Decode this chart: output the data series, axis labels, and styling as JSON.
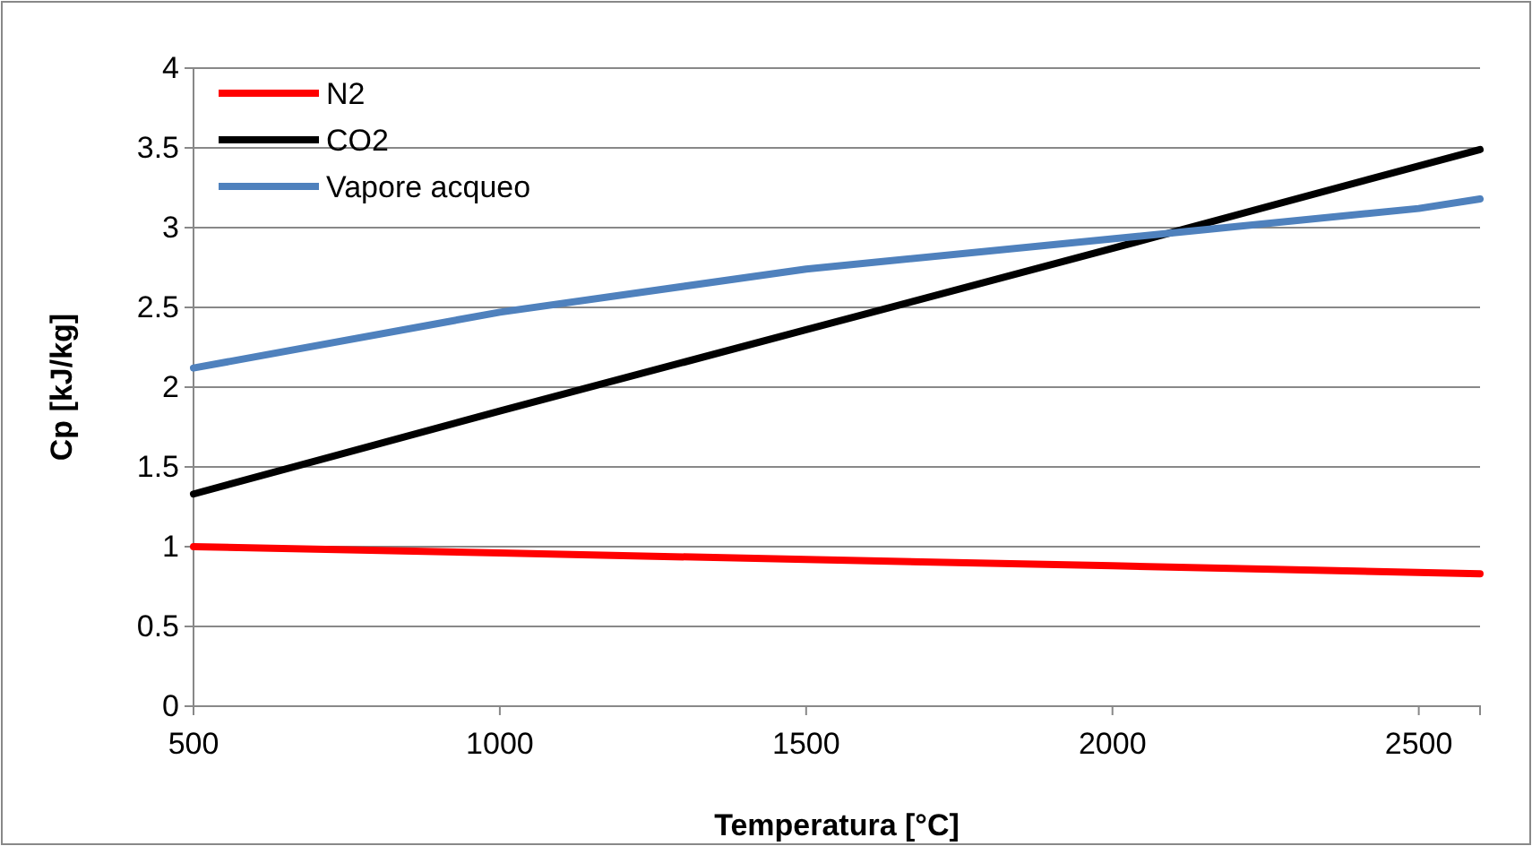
{
  "chart_data": {
    "type": "line",
    "xlabel": "Temperatura [°C]",
    "ylabel": "Cp [kJ/kg]",
    "xlim": [
      500,
      2600
    ],
    "xticks": [
      500,
      1000,
      1500,
      2000,
      2500
    ],
    "ylim": [
      0,
      4
    ],
    "yticks": [
      0,
      0.5,
      1,
      1.5,
      2,
      2.5,
      3,
      3.5,
      4
    ],
    "grid": "y",
    "legend": "top left",
    "marker": "none",
    "line_style": "solid",
    "series": [
      {
        "name": "N2",
        "color": "#ff0000",
        "x": [
          500,
          1000,
          1500,
          2000,
          2600
        ],
        "values": [
          1.0,
          0.96,
          0.92,
          0.88,
          0.83
        ]
      },
      {
        "name": "CO2",
        "color": "#000000",
        "x": [
          500,
          1000,
          1500,
          2000,
          2600
        ],
        "values": [
          1.33,
          1.85,
          2.36,
          2.87,
          3.49
        ]
      },
      {
        "name": "Vapore acqueo",
        "color": "#4f81bd",
        "x": [
          500,
          1000,
          1500,
          2000,
          2500,
          2600
        ],
        "values": [
          2.12,
          2.47,
          2.74,
          2.93,
          3.12,
          3.18
        ]
      }
    ]
  }
}
